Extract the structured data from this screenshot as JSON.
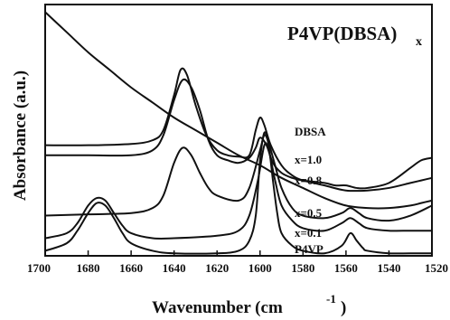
{
  "chart_data": {
    "type": "line",
    "title": "P4VP(DBSA)",
    "title_subscript": "x",
    "xlabel": "Wavenumber (cm",
    "xlabel_sup": "-1",
    "xlabel_end": ")",
    "ylabel": "Absorbance (a.u.)",
    "xlim": [
      1700,
      1520
    ],
    "x_reversed": true,
    "ylim": [
      0,
      1
    ],
    "y_ticks_shown": false,
    "grid": false,
    "x_ticks": [
      1700,
      1680,
      1660,
      1640,
      1620,
      1600,
      1580,
      1560,
      1540,
      1520
    ],
    "x_tick_labels": [
      "1700",
      "1680",
      "1660",
      "1640",
      "1620",
      "1600",
      "1580",
      "1560",
      "1540",
      "1520"
    ],
    "series": [
      {
        "name": "DBSA",
        "x": [
          1700,
          1690,
          1680,
          1670,
          1660,
          1650,
          1640,
          1630,
          1620,
          1610,
          1600,
          1590,
          1580,
          1570,
          1560,
          1550,
          1540,
          1530,
          1525,
          1520
        ],
        "y": [
          0.97,
          0.89,
          0.81,
          0.74,
          0.67,
          0.61,
          0.55,
          0.5,
          0.45,
          0.4,
          0.36,
          0.31,
          0.27,
          0.23,
          0.2,
          0.19,
          0.19,
          0.2,
          0.21,
          0.22
        ]
      },
      {
        "name": "x=1.0",
        "x": [
          1700,
          1680,
          1660,
          1650,
          1645,
          1640,
          1637,
          1634,
          1630,
          1625,
          1620,
          1615,
          1610,
          1605,
          1602,
          1600,
          1598,
          1595,
          1590,
          1585,
          1580,
          1570,
          1560,
          1550,
          1540,
          1530,
          1525,
          1520
        ],
        "y": [
          0.44,
          0.44,
          0.445,
          0.46,
          0.5,
          0.64,
          0.74,
          0.72,
          0.6,
          0.48,
          0.42,
          0.4,
          0.395,
          0.4,
          0.5,
          0.55,
          0.52,
          0.44,
          0.36,
          0.32,
          0.3,
          0.28,
          0.26,
          0.26,
          0.27,
          0.29,
          0.3,
          0.31
        ]
      },
      {
        "name": "x=0.8",
        "x": [
          1700,
          1680,
          1660,
          1650,
          1645,
          1640,
          1636,
          1632,
          1628,
          1624,
          1620,
          1615,
          1610,
          1605,
          1602,
          1600,
          1597,
          1594,
          1590,
          1585,
          1580,
          1570,
          1565,
          1560,
          1555,
          1550,
          1540,
          1530,
          1525,
          1520
        ],
        "y": [
          0.4,
          0.4,
          0.4,
          0.42,
          0.48,
          0.62,
          0.7,
          0.67,
          0.58,
          0.46,
          0.4,
          0.38,
          0.37,
          0.39,
          0.43,
          0.47,
          0.44,
          0.37,
          0.33,
          0.31,
          0.3,
          0.29,
          0.28,
          0.28,
          0.27,
          0.27,
          0.29,
          0.35,
          0.38,
          0.39
        ]
      },
      {
        "name": "x=0.5",
        "x": [
          1700,
          1680,
          1660,
          1650,
          1645,
          1640,
          1636,
          1632,
          1628,
          1624,
          1620,
          1610,
          1605,
          1600,
          1598,
          1596,
          1593,
          1590,
          1585,
          1580,
          1570,
          1562,
          1558,
          1554,
          1550,
          1540,
          1530,
          1520
        ],
        "y": [
          0.16,
          0.165,
          0.17,
          0.19,
          0.24,
          0.37,
          0.43,
          0.4,
          0.33,
          0.27,
          0.24,
          0.22,
          0.27,
          0.42,
          0.48,
          0.45,
          0.36,
          0.27,
          0.19,
          0.16,
          0.15,
          0.17,
          0.19,
          0.17,
          0.15,
          0.14,
          0.16,
          0.2
        ]
      },
      {
        "name": "x=0.1",
        "x": [
          1700,
          1690,
          1685,
          1680,
          1676,
          1672,
          1668,
          1664,
          1660,
          1650,
          1640,
          1620,
          1610,
          1605,
          1601,
          1598,
          1596,
          1593,
          1590,
          1585,
          1580,
          1570,
          1562,
          1558,
          1554,
          1550,
          1540,
          1530,
          1520
        ],
        "y": [
          0.07,
          0.09,
          0.13,
          0.2,
          0.23,
          0.22,
          0.17,
          0.12,
          0.09,
          0.07,
          0.07,
          0.08,
          0.1,
          0.16,
          0.3,
          0.44,
          0.42,
          0.3,
          0.2,
          0.14,
          0.11,
          0.1,
          0.13,
          0.15,
          0.13,
          0.11,
          0.1,
          0.1,
          0.1
        ]
      },
      {
        "name": "P4VP",
        "x": [
          1700,
          1690,
          1685,
          1680,
          1676,
          1672,
          1668,
          1664,
          1660,
          1650,
          1640,
          1620,
          1610,
          1605,
          1602,
          1600,
          1598,
          1596,
          1594,
          1592,
          1590,
          1585,
          1580,
          1570,
          1562,
          1558,
          1555,
          1552,
          1550,
          1540,
          1530,
          1520
        ],
        "y": [
          0.02,
          0.05,
          0.1,
          0.17,
          0.21,
          0.2,
          0.15,
          0.09,
          0.05,
          0.02,
          0.01,
          0.01,
          0.02,
          0.06,
          0.16,
          0.38,
          0.49,
          0.44,
          0.3,
          0.17,
          0.09,
          0.04,
          0.02,
          0.01,
          0.04,
          0.09,
          0.06,
          0.03,
          0.02,
          0.01,
          0.01,
          0.01
        ]
      }
    ]
  }
}
